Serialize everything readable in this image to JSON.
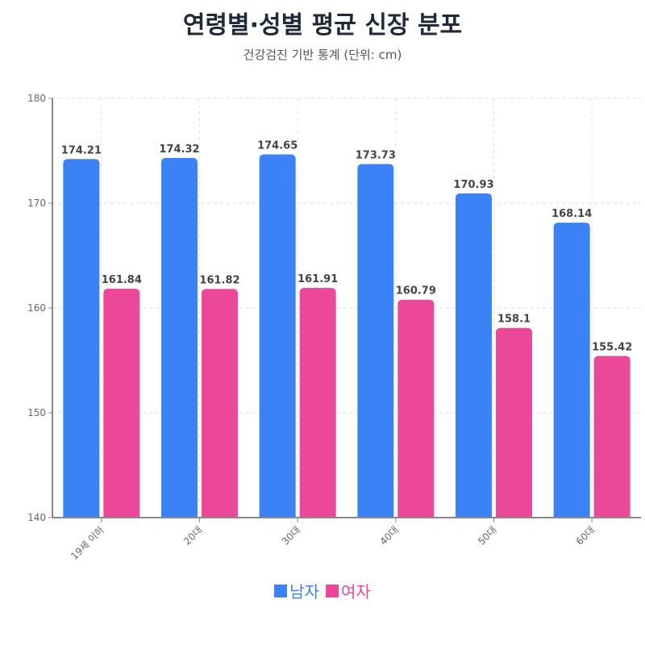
{
  "chart_data": {
    "type": "bar",
    "title": "연령별·성별 평균 신장 분포",
    "subtitle": "건강검진 기반 통계 (단위: cm)",
    "categories": [
      "19세 이하",
      "20대",
      "30대",
      "40대",
      "50대",
      "60대"
    ],
    "series": [
      {
        "name": "남자",
        "color": "#3b82f6",
        "values": [
          174.21,
          174.32,
          174.65,
          173.73,
          170.93,
          168.14
        ]
      },
      {
        "name": "여자",
        "color": "#ec4899",
        "values": [
          161.84,
          161.82,
          161.91,
          160.79,
          158.1,
          155.42
        ]
      }
    ],
    "ylim": [
      140,
      180
    ],
    "yticks": [
      140,
      150,
      160,
      170,
      180
    ],
    "grid": true,
    "legend": "bottom"
  }
}
